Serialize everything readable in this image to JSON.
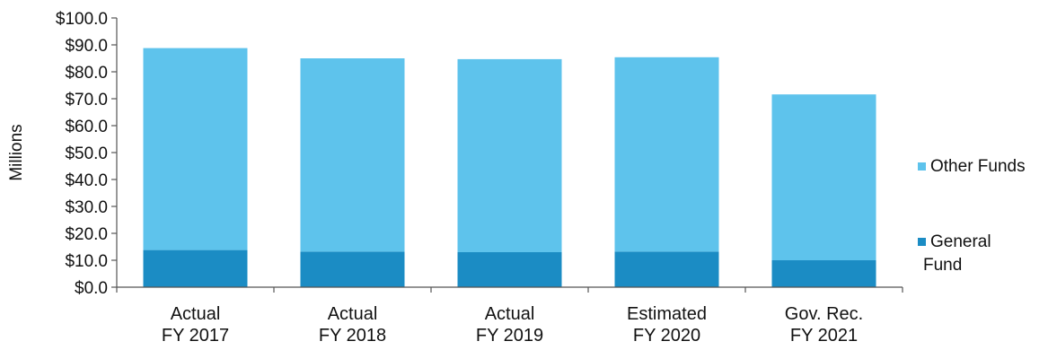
{
  "chart_data": {
    "type": "bar",
    "stacked": true,
    "categories": [
      [
        "Actual",
        "FY 2017"
      ],
      [
        "Actual",
        "FY 2018"
      ],
      [
        "Actual",
        "FY 2019"
      ],
      [
        "Estimated",
        "FY 2020"
      ],
      [
        "Gov. Rec.",
        "FY 2021"
      ]
    ],
    "series": [
      {
        "name": "General Fund",
        "legend_lines": [
          "General",
          "Fund"
        ],
        "color": "#1b8cc4",
        "values": [
          13.8,
          13.2,
          13.0,
          13.2,
          10.0
        ]
      },
      {
        "name": "Other Funds",
        "legend_lines": [
          "Other Funds"
        ],
        "color": "#5ec3ec",
        "values": [
          75.0,
          71.8,
          71.7,
          72.2,
          61.6
        ]
      }
    ],
    "title": "",
    "xlabel": "",
    "ylabel": "Millions",
    "ylim": [
      0,
      100
    ],
    "yticks": [
      0,
      10,
      20,
      30,
      40,
      50,
      60,
      70,
      80,
      90,
      100
    ],
    "ytick_labels": [
      "$0.0",
      "$10.0",
      "$20.0",
      "$30.0",
      "$40.0",
      "$50.0",
      "$60.0",
      "$70.0",
      "$80.0",
      "$90.0",
      "$100.0"
    ],
    "grid": false,
    "legend_position": "right"
  }
}
